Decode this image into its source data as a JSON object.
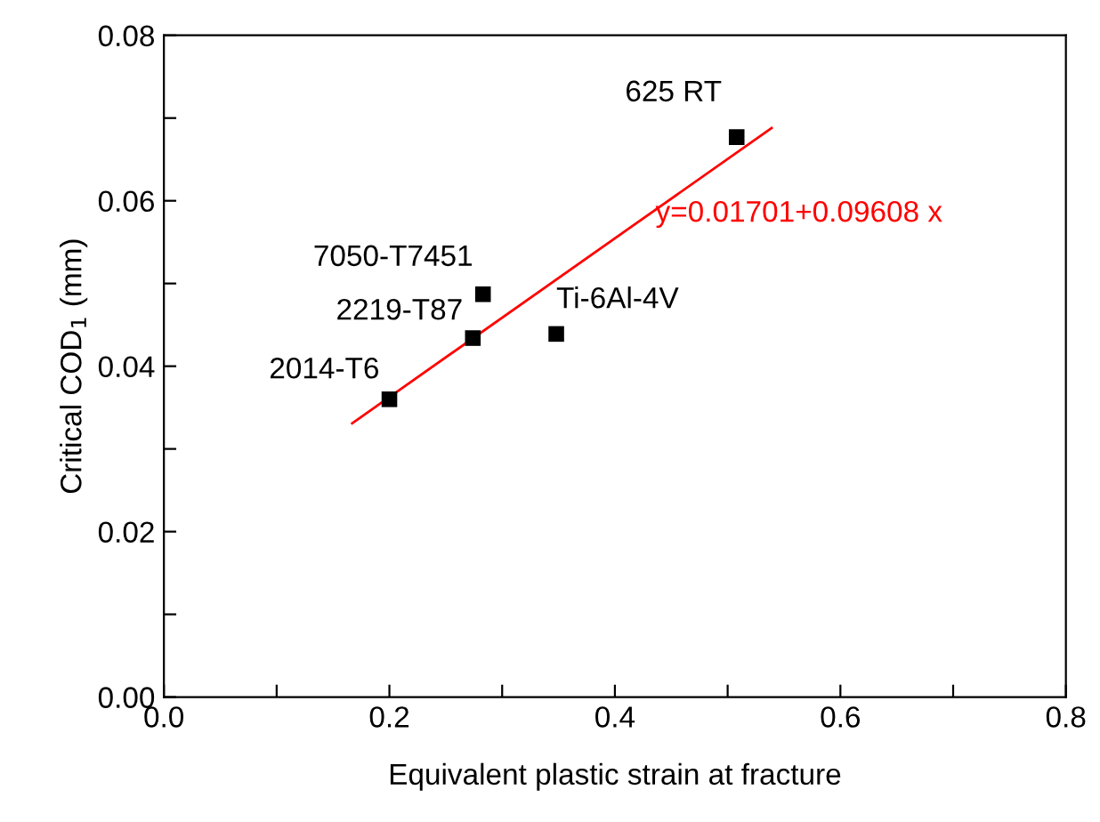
{
  "chart_data": {
    "type": "scatter",
    "xlabel": "Equivalent plastic strain at fracture",
    "ylabel": "Critical COD$_{1}$ (mm)",
    "xlim": [
      0,
      0.8
    ],
    "ylim": [
      0,
      0.08
    ],
    "xticks": [
      {
        "value": 0,
        "label": "0.0"
      },
      {
        "value": 0.1,
        "label": null
      },
      0.2,
      {
        "value": 0.3,
        "label": null
      },
      0.4,
      {
        "value": 0.5,
        "label": null
      },
      0.6,
      {
        "value": 0.7,
        "label": null
      },
      0.8
    ],
    "yticks": [
      {
        "value": 0,
        "label": "0.00"
      },
      {
        "value": 0.01,
        "label": null
      },
      0.02,
      {
        "value": 0.03,
        "label": null
      },
      0.04,
      {
        "value": 0.05,
        "label": null
      },
      0.06,
      {
        "value": 0.07,
        "label": null
      },
      0.08
    ],
    "series": [
      {
        "color": "#000000",
        "marker": "square",
        "x": [
          0.2,
          0.274,
          0.283,
          0.348,
          0.508
        ],
        "values": [
          0.036,
          0.0434,
          0.0487,
          0.0439,
          0.0677
        ]
      },
      {
        "type": "line",
        "color": "#ff0000",
        "x": [
          0.167,
          0.539
        ],
        "values": [
          0.0331,
          0.0688
        ]
      }
    ],
    "annotations": [
      {
        "text": "2014-T6",
        "x": 0.2,
        "y": 0.036
      },
      {
        "text": "2219-T87",
        "x": 0.274,
        "y": 0.0434
      },
      {
        "text": "7050-T7451",
        "x": 0.283,
        "y": 0.0487
      },
      {
        "text": "Ti-6Al-4V",
        "x": 0.348,
        "y": 0.0439
      },
      {
        "text": "625 RT",
        "x": 0.508,
        "y": 0.0677
      },
      "y=0.01701+0.09608 x"
    ]
  }
}
